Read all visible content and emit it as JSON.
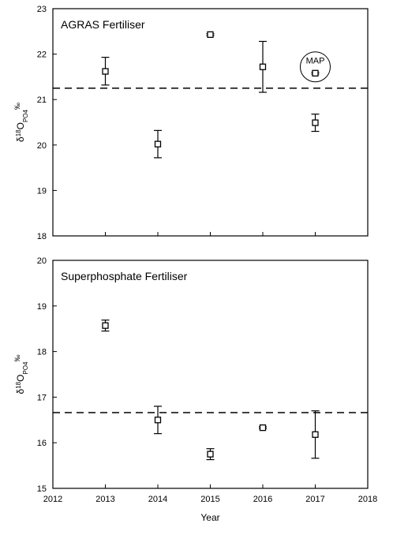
{
  "chart_data": [
    {
      "type": "scatter",
      "title": "AGRAS Fertiliser",
      "ylabel_base": "δ",
      "ylabel_sup": "18",
      "ylabel_main": "O",
      "ylabel_sub": "PO4",
      "ylabel_unit": "‰",
      "xlim": [
        2012,
        2018
      ],
      "ylim": [
        18,
        23
      ],
      "x_ticks_labeled": false,
      "y_ticks": [
        "18",
        "19",
        "20",
        "21",
        "22",
        "23"
      ],
      "reference_line": 21.25,
      "points": [
        {
          "x": 2013,
          "y": 21.62,
          "err_low": 21.32,
          "err_high": 21.93
        },
        {
          "x": 2014,
          "y": 20.02,
          "err_low": 19.72,
          "err_high": 20.32
        },
        {
          "x": 2015,
          "y": 22.43,
          "err_low": 22.41,
          "err_high": 22.45
        },
        {
          "x": 2016,
          "y": 21.72,
          "err_low": 21.16,
          "err_high": 22.28
        },
        {
          "x": 2017,
          "y": 20.49,
          "err_low": 20.3,
          "err_high": 20.68
        },
        {
          "x": 2017,
          "y": 21.58,
          "err_low": 21.56,
          "err_high": 21.6
        }
      ],
      "annotation": {
        "text": "MAP",
        "x": 2017,
        "y": 21.72
      }
    },
    {
      "type": "scatter",
      "title": "Superphosphate Fertiliser",
      "ylabel_base": "δ",
      "ylabel_sup": "18",
      "ylabel_main": "O",
      "ylabel_sub": "PO4",
      "ylabel_unit": "‰",
      "xlabel": "Year",
      "xlim": [
        2012,
        2018
      ],
      "ylim": [
        15,
        20
      ],
      "x_ticks": [
        "2012",
        "2013",
        "2014",
        "2015",
        "2016",
        "2017",
        "2018"
      ],
      "y_ticks": [
        "15",
        "16",
        "17",
        "18",
        "19",
        "20"
      ],
      "reference_line": 16.66,
      "points": [
        {
          "x": 2013,
          "y": 18.57,
          "err_low": 18.45,
          "err_high": 18.69
        },
        {
          "x": 2014,
          "y": 16.5,
          "err_low": 16.2,
          "err_high": 16.8
        },
        {
          "x": 2015,
          "y": 15.75,
          "err_low": 15.63,
          "err_high": 15.87
        },
        {
          "x": 2016,
          "y": 16.33,
          "err_low": 16.31,
          "err_high": 16.35
        },
        {
          "x": 2017,
          "y": 16.18,
          "err_low": 15.66,
          "err_high": 16.7
        }
      ]
    }
  ]
}
